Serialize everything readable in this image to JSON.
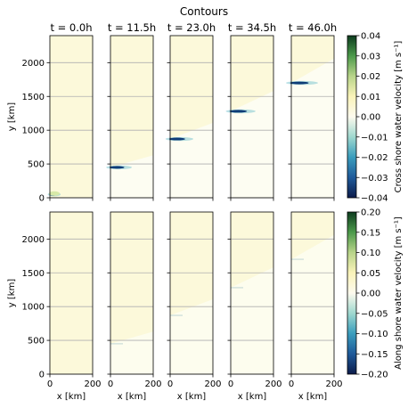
{
  "chart_data": {
    "type": "heatmap",
    "title": "Contours",
    "time_unit": "h",
    "times": [
      0.0,
      11.5,
      23.0,
      34.5,
      46.0
    ],
    "panel_titles": [
      "t = 0.0h",
      "t = 11.5h",
      "t = 23.0h",
      "t = 34.5h",
      "t = 46.0h"
    ],
    "xlabel": "x [km]",
    "ylabel": "y [km]",
    "xlim": [
      0,
      200
    ],
    "ylim": [
      0,
      2400
    ],
    "x_ticks": [
      0,
      200
    ],
    "y_ticks": [
      0,
      500,
      1000,
      1500,
      2000
    ],
    "grid": "horizontal",
    "feature_y_km": [
      50,
      450,
      870,
      1280,
      1700
    ],
    "rows": [
      {
        "colorbar_label": "Cross shore water velocity [m s⁻¹]",
        "clim": [
          -0.04,
          0.04
        ],
        "colorbar_ticks": [
          "0.04",
          "0.03",
          "0.02",
          "0.01",
          "0.00",
          "−0.01",
          "−0.02",
          "−0.03",
          "−0.04"
        ]
      },
      {
        "colorbar_label": "Along shore water velocity [m s⁻¹]",
        "clim": [
          -0.2,
          0.2
        ],
        "colorbar_ticks": [
          "0.20",
          "0.15",
          "0.10",
          "0.05",
          "0.00",
          "−0.05",
          "−0.10",
          "−0.15",
          "−0.20"
        ]
      }
    ],
    "colormap_stops": [
      "#0c1b4a",
      "#1f5a9a",
      "#3a9dbd",
      "#9fd8cf",
      "#fdfaee",
      "#faf3b9",
      "#b8d48a",
      "#4c9a4b",
      "#0d3b1e"
    ]
  }
}
